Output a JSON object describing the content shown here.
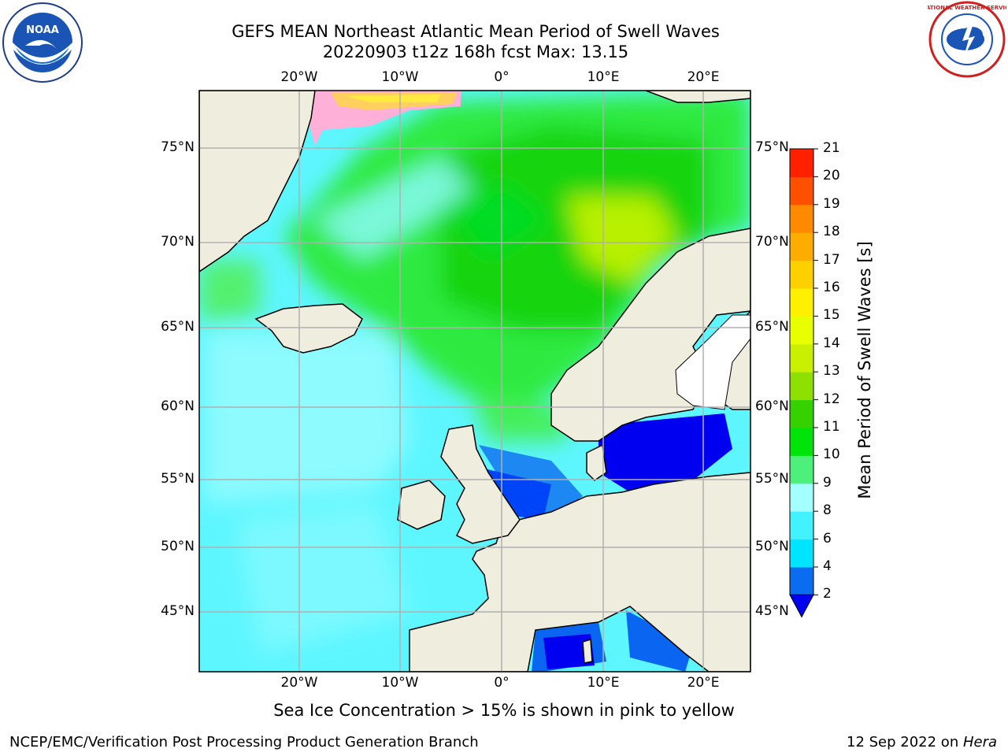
{
  "header": {
    "title_line1": "GEFS MEAN Northeast Atlantic Mean Period of Swell Waves",
    "title_line2": "20220903 t12z 168h fcst   Max: 13.15"
  },
  "logos": {
    "left": "NOAA",
    "right": "NATIONAL WEATHER SERVICE"
  },
  "map": {
    "lon_labels": [
      "20°W",
      "10°W",
      "0°",
      "10°E",
      "20°E"
    ],
    "lat_labels": [
      "75°N",
      "70°N",
      "65°N",
      "60°N",
      "55°N",
      "50°N",
      "45°N"
    ],
    "land_color": "#efedde",
    "grid_color": "#b0b0b0"
  },
  "colorbar": {
    "title": "Mean Period of Swell Waves [s]",
    "ticks": [
      "2",
      "4",
      "6",
      "8",
      "9",
      "10",
      "11",
      "12",
      "13",
      "14",
      "15",
      "16",
      "17",
      "18",
      "19",
      "20",
      "21"
    ],
    "colors": [
      "#0a6cf0",
      "#00e5ff",
      "#43f2ff",
      "#a4ffff",
      "#4df07a",
      "#00e40a",
      "#36d200",
      "#8ee000",
      "#c8f000",
      "#e8ff00",
      "#fff000",
      "#ffd000",
      "#ffac00",
      "#ff8a00",
      "#ff5000",
      "#ff2000"
    ],
    "under_color": "#0000f0"
  },
  "footer": {
    "note": "Sea Ice Concentration > 15% is shown in pink to yellow",
    "left": "NCEP/EMC/Verification Post Processing Product Generation Branch",
    "date": "12 Sep 2022 on ",
    "machine": "Hera"
  }
}
